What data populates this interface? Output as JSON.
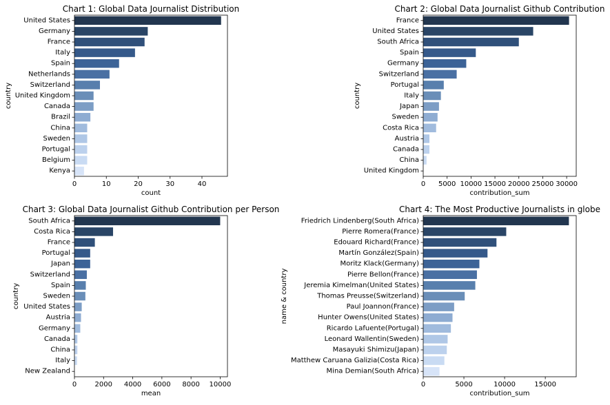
{
  "chart_data": [
    {
      "type": "bar",
      "orientation": "horizontal",
      "title": "Chart 1: Global Data Journalist Distribution",
      "xlabel": "count",
      "ylabel": "country",
      "xlim": [
        0,
        48
      ],
      "xticks": [
        0,
        10,
        20,
        30,
        40
      ],
      "categories": [
        "United States",
        "Germany",
        "France",
        "Italy",
        "Spain",
        "Netherlands",
        "Switzerland",
        "United Kingdom",
        "Canada",
        "Brazil",
        "China",
        "Sweden",
        "Portugal",
        "Belgium",
        "Kenya"
      ],
      "values": [
        46,
        23,
        22,
        19,
        14,
        11,
        8,
        6,
        6,
        5,
        4,
        4,
        4,
        4,
        3
      ],
      "grid": false
    },
    {
      "type": "bar",
      "orientation": "horizontal",
      "title": "Chart 2: Global Data Journalist Github Contribution",
      "xlabel": "contribution_sum",
      "ylabel": "country",
      "xlim": [
        0,
        32000
      ],
      "xticks": [
        0,
        5000,
        10000,
        15000,
        20000,
        25000,
        30000
      ],
      "categories": [
        "France",
        "United States",
        "South Africa",
        "Spain",
        "Germany",
        "Switzerland",
        "Portugal",
        "Italy",
        "Japan",
        "Sweden",
        "Costa Rica",
        "Austria",
        "Canada",
        "China",
        "United Kingdom"
      ],
      "values": [
        30500,
        23000,
        20000,
        11000,
        9000,
        7000,
        4300,
        3700,
        3300,
        3000,
        2700,
        1300,
        1300,
        700,
        0
      ],
      "grid": false
    },
    {
      "type": "bar",
      "orientation": "horizontal",
      "title": "Chart 3: Global Data Journalist Github Contribution per Person",
      "xlabel": "mean",
      "ylabel": "country",
      "xlim": [
        0,
        10500
      ],
      "xticks": [
        0,
        2000,
        4000,
        6000,
        8000,
        10000
      ],
      "categories": [
        "South Africa",
        "Costa Rica",
        "France",
        "Portugal",
        "Japan",
        "Switzerland",
        "Spain",
        "Sweden",
        "United States",
        "Austria",
        "Germany",
        "Canada",
        "China",
        "Italy",
        "New Zealand"
      ],
      "values": [
        10000,
        2650,
        1400,
        1080,
        1080,
        850,
        780,
        750,
        500,
        450,
        400,
        200,
        200,
        180,
        0
      ],
      "grid": false
    },
    {
      "type": "bar",
      "orientation": "horizontal",
      "title": "Chart 4: The Most Productive Journalists in globe",
      "xlabel": "contribution_sum",
      "ylabel": "name & country",
      "xlim": [
        0,
        18800
      ],
      "xticks": [
        0,
        5000,
        10000,
        15000
      ],
      "categories": [
        "Friedrich Lindenberg(South Africa)",
        "Pierre Romera(France)",
        "Edouard Richard(France)",
        "Martín González(Spain)",
        "Moritz Klack(Germany)",
        "Pierre Bellon(France)",
        "Jeremia Kimelman(United States)",
        "Thomas Preusse(Switzerland)",
        "Paul Joannon(France)",
        "Hunter Owens(United States)",
        "Ricardo Lafuente(Portugal)",
        "Leonard Wallentin(Sweden)",
        "Masayuki Shimizu(Japan)",
        "Matthew Caruana Galizia(Costa Rica)",
        "Mina Demian(South Africa)"
      ],
      "values": [
        17900,
        10200,
        9000,
        7900,
        6900,
        6600,
        6400,
        5100,
        3800,
        3600,
        3400,
        3000,
        2900,
        2600,
        2000
      ],
      "grid": false
    }
  ],
  "palette": [
    "#22364f",
    "#2a4566",
    "#30507a",
    "#35598a",
    "#3c6397",
    "#4a70a3",
    "#587fad",
    "#6a8eb8",
    "#7c9dc5",
    "#8eacd2",
    "#a0bbdd",
    "#afc7e6",
    "#bcd1ed",
    "#c9dbf3",
    "#d7e4f8"
  ]
}
